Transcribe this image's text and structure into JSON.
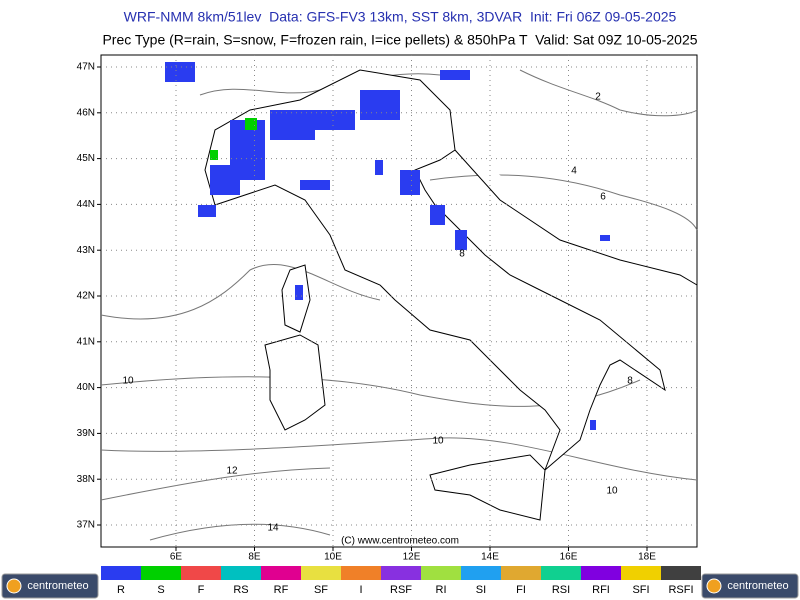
{
  "header": {
    "title": "WRF-NMM 8km/51lev  Data: GFS-FV3 13km, SST 8km, 3DVAR  Init: Fri 06Z 09-05-2025",
    "subtitle": "Prec Type (R=rain, S=snow, F=frozen rain, I=ice pellets) & 850hPa T  Valid: Sat 09Z 10-05-2025"
  },
  "map": {
    "lat_labels": [
      "47N",
      "46N",
      "45N",
      "44N",
      "43N",
      "42N",
      "41N",
      "40N",
      "39N",
      "38N",
      "37N"
    ],
    "lon_labels": [
      "6E",
      "8E",
      "10E",
      "12E",
      "14E",
      "16E",
      "18E"
    ],
    "contour_labels": [
      "2",
      "4",
      "6",
      "8",
      "10",
      "10",
      "12",
      "14",
      "10",
      "8"
    ],
    "credit": "(C) www.centrometeo.com"
  },
  "legend": [
    {
      "label": "R",
      "color": "#2a3cf0"
    },
    {
      "label": "S",
      "color": "#00d000"
    },
    {
      "label": "F",
      "color": "#f04848"
    },
    {
      "label": "RS",
      "color": "#00c0c0"
    },
    {
      "label": "RF",
      "color": "#e00090"
    },
    {
      "label": "SF",
      "color": "#e8e040"
    },
    {
      "label": "I",
      "color": "#f08028"
    },
    {
      "label": "RSF",
      "color": "#8830e0"
    },
    {
      "label": "RI",
      "color": "#a0e040"
    },
    {
      "label": "SI",
      "color": "#20a0f0"
    },
    {
      "label": "FI",
      "color": "#e0a830"
    },
    {
      "label": "RSI",
      "color": "#10d090"
    },
    {
      "label": "RFI",
      "color": "#8000e0"
    },
    {
      "label": "SFI",
      "color": "#f0d000"
    },
    {
      "label": "RSFI",
      "color": "#404040"
    }
  ],
  "logos": [
    "centrometeo",
    "centrometeo"
  ]
}
